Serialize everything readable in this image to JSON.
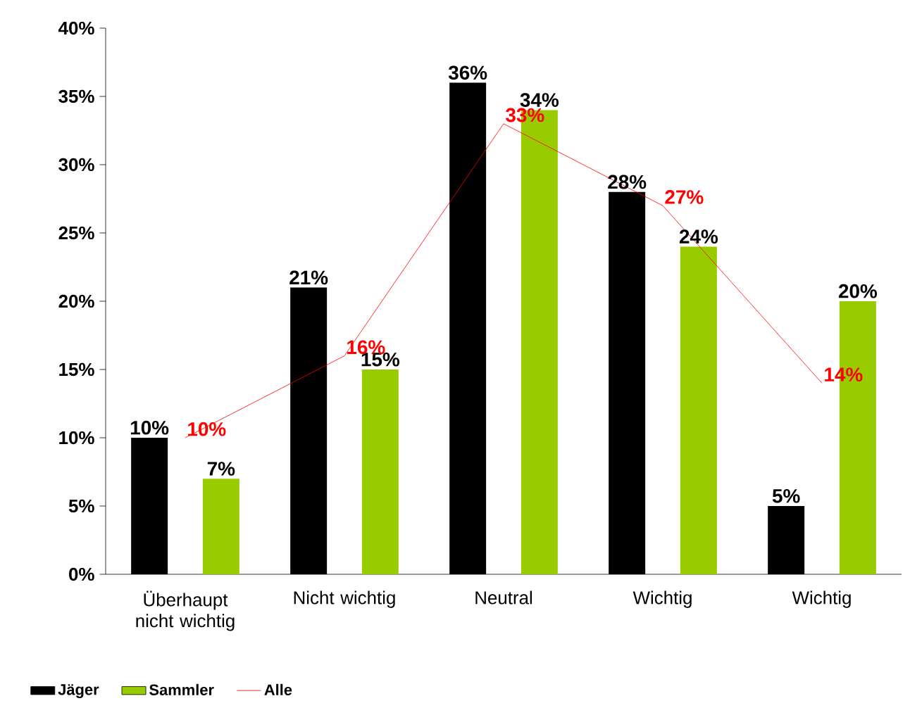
{
  "chart_data": {
    "type": "bar",
    "categories": [
      "Überhaupt nicht wichtig",
      "Nicht wichtig",
      "Neutral",
      "Wichtig",
      "Wichtig"
    ],
    "series": [
      {
        "name": "Jäger",
        "color": "#000000",
        "values": [
          10,
          21,
          36,
          28,
          5
        ],
        "value_labels": [
          "10%",
          "21%",
          "36%",
          "28%",
          "5%"
        ]
      },
      {
        "name": "Sammler",
        "color": "#99cc00",
        "values": [
          7,
          15,
          34,
          24,
          20
        ],
        "value_labels": [
          "7%",
          "15%",
          "34%",
          "24%",
          "20%"
        ]
      },
      {
        "name": "Alle",
        "type": "line",
        "color": "#ff0000",
        "values": [
          10,
          16,
          33,
          27,
          14
        ],
        "value_labels": [
          "10%",
          "16%",
          "33%",
          "27%",
          "14%"
        ]
      }
    ],
    "ylim": [
      0,
      40
    ],
    "yticks": [
      {
        "value": 0,
        "label": "0%"
      },
      {
        "value": 5,
        "label": "5%"
      },
      {
        "value": 10,
        "label": "10%"
      },
      {
        "value": 15,
        "label": "15%"
      },
      {
        "value": 20,
        "label": "20%"
      },
      {
        "value": 25,
        "label": "25%"
      },
      {
        "value": 30,
        "label": "30%"
      },
      {
        "value": 35,
        "label": "35%"
      },
      {
        "value": 40,
        "label": "40%"
      }
    ],
    "legend": "bottom",
    "grid": false
  }
}
